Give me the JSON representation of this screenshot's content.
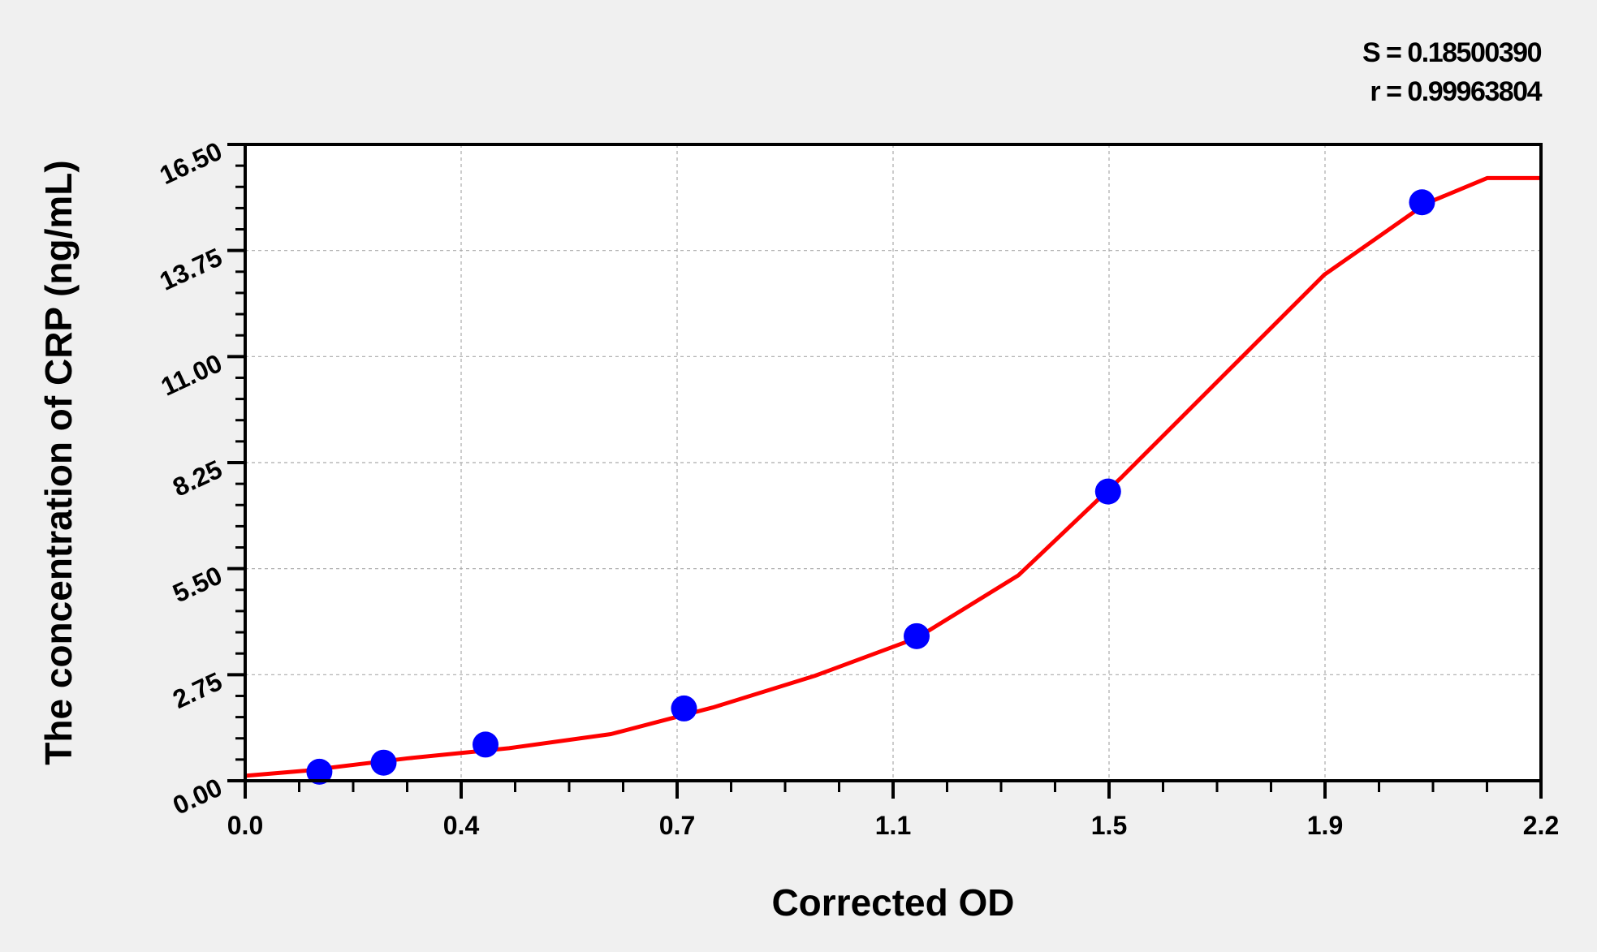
{
  "chart_data": {
    "type": "scatter",
    "xlabel": "Corrected OD",
    "ylabel": "The concentration of CRP (ng/mL)",
    "xlim": [
      0,
      2.2
    ],
    "ylim": [
      0,
      16.5
    ],
    "x_tick_labels": [
      "0.0",
      "0.4",
      "0.7",
      "1.1",
      "1.5",
      "1.9",
      "2.2"
    ],
    "y_tick_labels": [
      "0.00",
      "2.75",
      "5.50",
      "8.25",
      "11.00",
      "13.75",
      "16.50"
    ],
    "grid": true,
    "annotations": [
      "S = 0.18500390",
      "r = 0.99963804"
    ],
    "points": {
      "x": [
        0.126,
        0.235,
        0.408,
        0.745,
        1.14,
        1.465,
        1.998
      ],
      "y": [
        0.234,
        0.469,
        0.938,
        1.875,
        3.75,
        7.5,
        15.0
      ],
      "color": "#0000ff"
    },
    "fit_curve": {
      "x": [
        0.0,
        0.102,
        0.275,
        0.448,
        0.621,
        0.794,
        0.967,
        1.14,
        1.313,
        1.486,
        1.659,
        1.832,
        2.005,
        2.109,
        2.2
      ],
      "y": [
        0.13,
        0.26,
        0.58,
        0.845,
        1.21,
        1.9,
        2.72,
        3.7,
        5.33,
        7.84,
        10.48,
        13.12,
        14.97,
        15.63,
        15.63
      ],
      "color": "#ff0000"
    }
  }
}
